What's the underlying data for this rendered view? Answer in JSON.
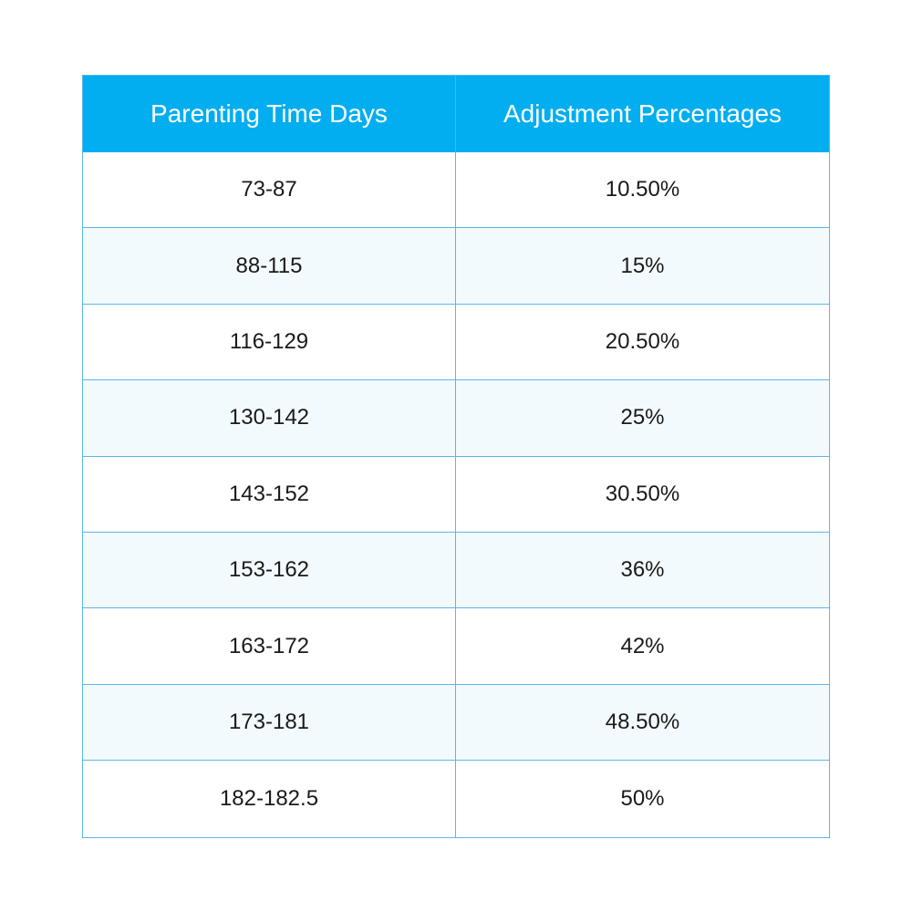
{
  "table": {
    "headers": [
      "Parenting Time Days",
      "Adjustment Percentages"
    ],
    "rows": [
      [
        "73-87",
        "10.50%"
      ],
      [
        "88-115",
        "15%"
      ],
      [
        "116-129",
        "20.50%"
      ],
      [
        "130-142",
        "25%"
      ],
      [
        "143-152",
        "30.50%"
      ],
      [
        "153-162",
        "36%"
      ],
      [
        "163-172",
        "42%"
      ],
      [
        "173-181",
        "48.50%"
      ],
      [
        "182-182.5",
        "50%"
      ]
    ]
  },
  "colors": {
    "header_background": "#03aef0",
    "border": "#5bb6e8",
    "alt_row_background": "#f3fafd"
  }
}
